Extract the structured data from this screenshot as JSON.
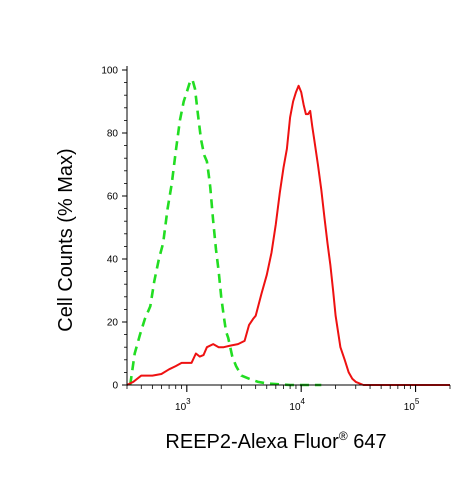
{
  "chart_data": {
    "type": "line",
    "xlabel": "REEP2-Alexa Fluor",
    "xlabel_sup": "®",
    "xlabel_suffix": " 647",
    "ylabel": "Cell Counts (% Max)",
    "x_scale": "log",
    "xlim": [
      300,
      200000
    ],
    "ylim": [
      0,
      100
    ],
    "y_ticks": [
      0,
      20,
      40,
      60,
      80,
      100
    ],
    "x_ticks": [
      {
        "value": 1000,
        "base": "10",
        "exp": "3"
      },
      {
        "value": 10000,
        "base": "10",
        "exp": "4"
      },
      {
        "value": 100000,
        "base": "10",
        "exp": "5"
      }
    ],
    "grid": false,
    "series": [
      {
        "color": "#22dd22",
        "style": "dashed",
        "points": [
          [
            320,
            0
          ],
          [
            350,
            10
          ],
          [
            390,
            16
          ],
          [
            430,
            21
          ],
          [
            480,
            25
          ],
          [
            520,
            33
          ],
          [
            570,
            40
          ],
          [
            620,
            45
          ],
          [
            680,
            56
          ],
          [
            740,
            64
          ],
          [
            800,
            74
          ],
          [
            870,
            84
          ],
          [
            940,
            90
          ],
          [
            1000,
            93
          ],
          [
            1060,
            96
          ],
          [
            1120,
            97
          ],
          [
            1180,
            94
          ],
          [
            1250,
            86
          ],
          [
            1330,
            78
          ],
          [
            1420,
            73
          ],
          [
            1500,
            71
          ],
          [
            1550,
            67
          ],
          [
            1600,
            63
          ],
          [
            1700,
            52
          ],
          [
            1800,
            43
          ],
          [
            1900,
            36
          ],
          [
            2000,
            28
          ],
          [
            2100,
            22
          ],
          [
            2200,
            17
          ],
          [
            2300,
            15
          ],
          [
            2500,
            9
          ],
          [
            2700,
            6
          ],
          [
            3000,
            3
          ],
          [
            3500,
            2
          ],
          [
            4200,
            1
          ],
          [
            5000,
            0.5
          ],
          [
            8000,
            0
          ],
          [
            15000,
            0
          ]
        ]
      },
      {
        "color": "#ee1111",
        "style": "solid",
        "points": [
          [
            300,
            0
          ],
          [
            340,
            1
          ],
          [
            400,
            3
          ],
          [
            500,
            3
          ],
          [
            600,
            3.5
          ],
          [
            700,
            5
          ],
          [
            800,
            6
          ],
          [
            900,
            7
          ],
          [
            1000,
            7
          ],
          [
            1100,
            7
          ],
          [
            1200,
            10
          ],
          [
            1300,
            9
          ],
          [
            1400,
            9.5
          ],
          [
            1500,
            12
          ],
          [
            1700,
            13
          ],
          [
            1900,
            12
          ],
          [
            2100,
            12
          ],
          [
            2400,
            12.5
          ],
          [
            2800,
            13
          ],
          [
            3200,
            14
          ],
          [
            3500,
            19
          ],
          [
            3800,
            21
          ],
          [
            4000,
            22
          ],
          [
            4500,
            29
          ],
          [
            5000,
            35
          ],
          [
            5500,
            42
          ],
          [
            6000,
            51
          ],
          [
            6500,
            61
          ],
          [
            7000,
            69
          ],
          [
            7500,
            75
          ],
          [
            8000,
            85
          ],
          [
            8500,
            90
          ],
          [
            9000,
            93
          ],
          [
            9500,
            95
          ],
          [
            10000,
            93
          ],
          [
            10500,
            89
          ],
          [
            11000,
            86
          ],
          [
            11500,
            86
          ],
          [
            12000,
            87
          ],
          [
            12500,
            82
          ],
          [
            13000,
            78
          ],
          [
            14000,
            70
          ],
          [
            15000,
            62
          ],
          [
            16000,
            53
          ],
          [
            17000,
            45
          ],
          [
            18000,
            38
          ],
          [
            19000,
            30
          ],
          [
            20000,
            22
          ],
          [
            22000,
            12
          ],
          [
            24000,
            8
          ],
          [
            26000,
            4
          ],
          [
            28000,
            2
          ],
          [
            30000,
            1
          ],
          [
            35000,
            0
          ],
          [
            50000,
            0
          ],
          [
            200000,
            0
          ]
        ]
      }
    ]
  }
}
